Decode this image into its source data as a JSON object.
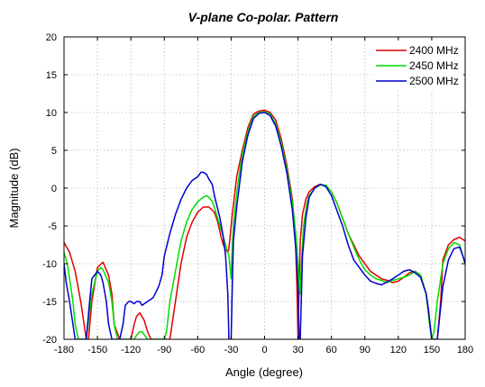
{
  "chart_data": {
    "type": "line",
    "title": "V-plane Co-polar. Pattern",
    "xlabel": "Angle (degree)",
    "ylabel": "Magnitude (dB)",
    "xlim": [
      -180,
      180
    ],
    "ylim": [
      -20,
      20
    ],
    "xticks": [
      -180,
      -150,
      -120,
      -90,
      -60,
      -30,
      0,
      30,
      60,
      90,
      120,
      150,
      180
    ],
    "yticks": [
      -20,
      -15,
      -10,
      -5,
      0,
      5,
      10,
      15,
      20
    ],
    "grid": true,
    "legend_position": "top-right",
    "series": [
      {
        "name": "2400 MHz",
        "color": "#e00000",
        "x": [
          -180,
          -175,
          -170,
          -165,
          -162,
          -160,
          -158,
          -155,
          -150,
          -145,
          -140,
          -137,
          -135,
          -130,
          -127,
          -123,
          -120,
          -117,
          -115,
          -112,
          -108,
          -105,
          -102,
          -100,
          -98,
          -96,
          -94,
          -92,
          -90,
          -85,
          -80,
          -75,
          -70,
          -65,
          -60,
          -55,
          -50,
          -45,
          -42,
          -39,
          -37,
          -35,
          -33,
          -32,
          -31,
          -30,
          -29,
          -27,
          -25,
          -20,
          -15,
          -10,
          -5,
          0,
          5,
          10,
          15,
          20,
          25,
          27,
          28,
          29,
          30,
          31,
          32,
          34,
          37,
          40,
          45,
          50,
          55,
          60,
          65,
          70,
          75,
          80,
          85,
          90,
          95,
          100,
          105,
          110,
          115,
          120,
          125,
          130,
          135,
          140,
          145,
          150,
          152,
          155,
          158,
          160,
          165,
          170,
          175,
          180
        ],
        "y": [
          -7.2,
          -8.5,
          -11,
          -15,
          -18,
          -20,
          -20,
          -15,
          -10.5,
          -9.8,
          -11.5,
          -14,
          -18,
          -20,
          -20,
          -20,
          -20,
          -18,
          -17,
          -16.5,
          -17.5,
          -19,
          -20,
          -20,
          -20,
          -20,
          -20,
          -20,
          -20,
          -20,
          -15,
          -10,
          -6.5,
          -4.5,
          -3.2,
          -2.5,
          -2.5,
          -3.2,
          -4.5,
          -6.5,
          -7.5,
          -8.2,
          -8.5,
          -8,
          -6.5,
          -5,
          -3.5,
          -1,
          1.5,
          5,
          8,
          9.8,
          10.2,
          10.3,
          10,
          9,
          6.5,
          3,
          -1.5,
          -5,
          -8,
          -13,
          -20,
          -13,
          -7,
          -3.5,
          -1.5,
          -0.5,
          0.2,
          0.5,
          0.3,
          -0.5,
          -2,
          -4,
          -6,
          -7.5,
          -9,
          -10,
          -11,
          -11.5,
          -12,
          -12.2,
          -12.5,
          -12.3,
          -11.8,
          -11.2,
          -11,
          -11.5,
          -14,
          -20,
          -20,
          -20,
          -15,
          -9.5,
          -7.5,
          -6.8,
          -6.5,
          -7
        ]
      },
      {
        "name": "2450 MHz",
        "color": "#00dd00",
        "x": [
          -180,
          -177,
          -175,
          -172,
          -170,
          -167,
          -165,
          -160,
          -155,
          -150,
          -147,
          -145,
          -140,
          -137,
          -135,
          -132,
          -130,
          -128,
          -125,
          -122,
          -120,
          -117,
          -115,
          -112,
          -110,
          -105,
          -100,
          -98,
          -95,
          -92,
          -90,
          -88,
          -85,
          -80,
          -75,
          -70,
          -65,
          -60,
          -55,
          -52,
          -50,
          -47,
          -45,
          -40,
          -37,
          -35,
          -33,
          -32,
          -31,
          -30,
          -29,
          -28,
          -26,
          -24,
          -20,
          -15,
          -10,
          -5,
          0,
          5,
          10,
          15,
          20,
          25,
          28,
          30,
          31,
          32,
          33,
          35,
          38,
          40,
          45,
          50,
          55,
          60,
          65,
          70,
          75,
          80,
          85,
          90,
          95,
          100,
          105,
          110,
          115,
          120,
          125,
          130,
          135,
          140,
          145,
          148,
          150,
          152,
          155,
          160,
          165,
          170,
          175,
          178,
          180
        ],
        "y": [
          -8.5,
          -10,
          -12,
          -15,
          -18,
          -20,
          -20,
          -20,
          -14,
          -11,
          -10.5,
          -10.8,
          -12.5,
          -15,
          -18,
          -20,
          -20,
          -20,
          -20,
          -20,
          -20,
          -20,
          -19.5,
          -19,
          -19,
          -20,
          -20,
          -20,
          -20,
          -20,
          -20,
          -19,
          -15,
          -11,
          -7,
          -4.5,
          -2.8,
          -1.8,
          -1.2,
          -1,
          -1.2,
          -1.8,
          -2.6,
          -5,
          -6.5,
          -7.5,
          -8.5,
          -9,
          -10.5,
          -12,
          -8,
          -5,
          -2,
          0.5,
          4.5,
          7.5,
          9.5,
          10,
          10.1,
          9.8,
          8.5,
          6,
          2.5,
          -2,
          -6,
          -10,
          -13,
          -14,
          -10,
          -5,
          -2,
          -1,
          0,
          0.4,
          0.4,
          -0.5,
          -2,
          -4,
          -6,
          -7.8,
          -9.5,
          -10.8,
          -11.5,
          -12,
          -12.2,
          -12.5,
          -12.2,
          -12,
          -11.8,
          -11.5,
          -11,
          -11.5,
          -14,
          -18,
          -20,
          -19,
          -15,
          -10,
          -8,
          -7.2,
          -7.5,
          -9,
          -10
        ]
      },
      {
        "name": "2500 MHz",
        "color": "#0000cc",
        "x": [
          -180,
          -178,
          -175,
          -172,
          -170,
          -167,
          -165,
          -160,
          -157,
          -155,
          -150,
          -147,
          -145,
          -142,
          -140,
          -137,
          -135,
          -133,
          -130,
          -127,
          -125,
          -122,
          -120,
          -117,
          -115,
          -112,
          -110,
          -105,
          -100,
          -95,
          -92,
          -90,
          -85,
          -80,
          -75,
          -70,
          -65,
          -60,
          -57,
          -55,
          -52,
          -50,
          -47,
          -45,
          -40,
          -37,
          -35,
          -33,
          -32,
          -31,
          -30,
          -29,
          -28,
          -25,
          -20,
          -15,
          -10,
          -5,
          0,
          5,
          10,
          15,
          20,
          25,
          28,
          30,
          31,
          32,
          34,
          37,
          40,
          45,
          50,
          55,
          60,
          65,
          70,
          75,
          80,
          85,
          90,
          95,
          100,
          105,
          110,
          115,
          120,
          125,
          130,
          135,
          140,
          145,
          147,
          150,
          153,
          155,
          160,
          165,
          170,
          175,
          178,
          180
        ],
        "y": [
          -10,
          -12.5,
          -15,
          -18,
          -20,
          -20,
          -20,
          -20,
          -15,
          -12,
          -11,
          -11.5,
          -12.5,
          -15,
          -18,
          -20,
          -20,
          -20,
          -20,
          -18,
          -15.5,
          -15,
          -15,
          -15.3,
          -15,
          -15,
          -15.5,
          -15,
          -14.5,
          -13,
          -11.5,
          -9,
          -6,
          -3.5,
          -1.5,
          0,
          1,
          1.5,
          2.1,
          2.1,
          1.8,
          1.2,
          0.5,
          -1,
          -4,
          -6.5,
          -9,
          -14,
          -20,
          -20,
          -20,
          -13,
          -7,
          -2.5,
          3.5,
          7,
          9.2,
          9.9,
          10,
          9.6,
          8.2,
          5.5,
          2,
          -3,
          -8,
          -13,
          -20,
          -20,
          -9,
          -4,
          -1.2,
          0,
          0.5,
          0.2,
          -1,
          -3,
          -5,
          -7.5,
          -9.5,
          -10.5,
          -11.5,
          -12.3,
          -12.6,
          -12.8,
          -12.4,
          -12,
          -11.5,
          -11,
          -10.8,
          -11.2,
          -11.8,
          -14,
          -16,
          -20,
          -20,
          -20,
          -13,
          -9.5,
          -8,
          -7.8,
          -9,
          -10
        ]
      }
    ]
  }
}
